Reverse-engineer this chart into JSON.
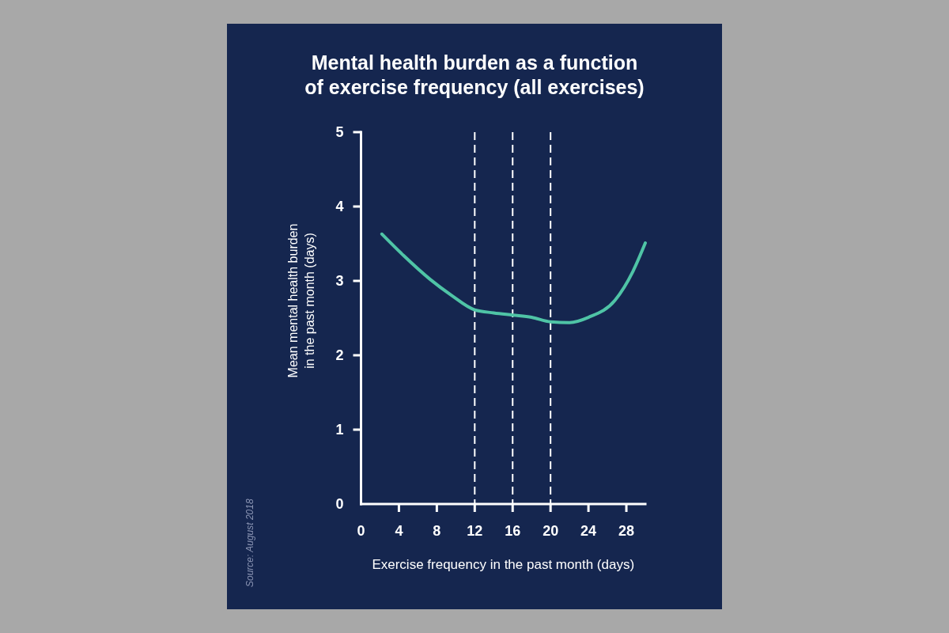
{
  "chart_data": {
    "type": "line",
    "title": "Mental health burden as a function of exercise frequency (all exercises)",
    "xlabel": "Exercise frequency in the past month (days)",
    "ylabel": "Mean mental health burden in the past month (days)",
    "annotations": [
      "Source: August 2018"
    ],
    "x": [
      2.2,
      4.5,
      7.3,
      9.5,
      12,
      14,
      16,
      18,
      20,
      22,
      24,
      26.8,
      28.7,
      30
    ],
    "values": [
      3.63,
      3.34,
      3.02,
      2.81,
      2.61,
      2.57,
      2.54,
      2.51,
      2.45,
      2.44,
      2.51,
      2.74,
      3.13,
      3.51
    ],
    "color": "#4fc4a6",
    "line_style": "solid",
    "xlim": [
      0,
      30
    ],
    "xticks": [
      0,
      4,
      8,
      12,
      16,
      20,
      24,
      28
    ],
    "ylim": [
      0,
      5
    ],
    "yticks": [
      0,
      1,
      2,
      3,
      4,
      5
    ],
    "ref_lines": [
      {
        "axis": "x",
        "value": 12,
        "color": "#ffffff",
        "line_style": "dashed"
      },
      {
        "axis": "x",
        "value": 16,
        "color": "#ffffff",
        "line_style": "dashed"
      },
      {
        "axis": "x",
        "value": 20,
        "color": "#ffffff",
        "line_style": "dashed"
      }
    ]
  }
}
